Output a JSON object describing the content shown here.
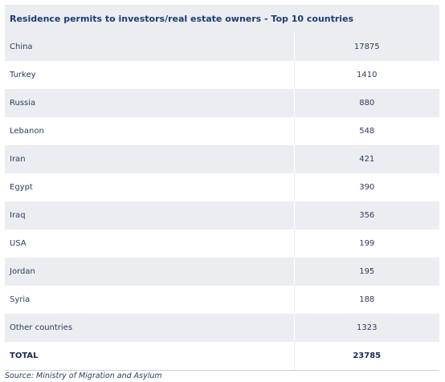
{
  "title": "Residence permits to investors/real estate owners - Top 10 countries",
  "rows": [
    {
      "country": "China",
      "value": "17875"
    },
    {
      "country": "Turkey",
      "value": "1410"
    },
    {
      "country": "Russia",
      "value": "880"
    },
    {
      "country": "Lebanon",
      "value": "548"
    },
    {
      "country": "Iran",
      "value": "421"
    },
    {
      "country": "Egypt",
      "value": "390"
    },
    {
      "country": "Iraq",
      "value": "356"
    },
    {
      "country": "USA",
      "value": "199"
    },
    {
      "country": "Jordan",
      "value": "195"
    },
    {
      "country": "Syria",
      "value": "188"
    },
    {
      "country": "Other countries",
      "value": "1323"
    }
  ],
  "total": {
    "label": "TOTAL",
    "value": "23785"
  },
  "source": "Source: Ministry of Migration and Asylum",
  "colors": {
    "header_text": "#1f3c73",
    "shaded_row": "#ebedf1",
    "text": "#2e3c5a"
  }
}
